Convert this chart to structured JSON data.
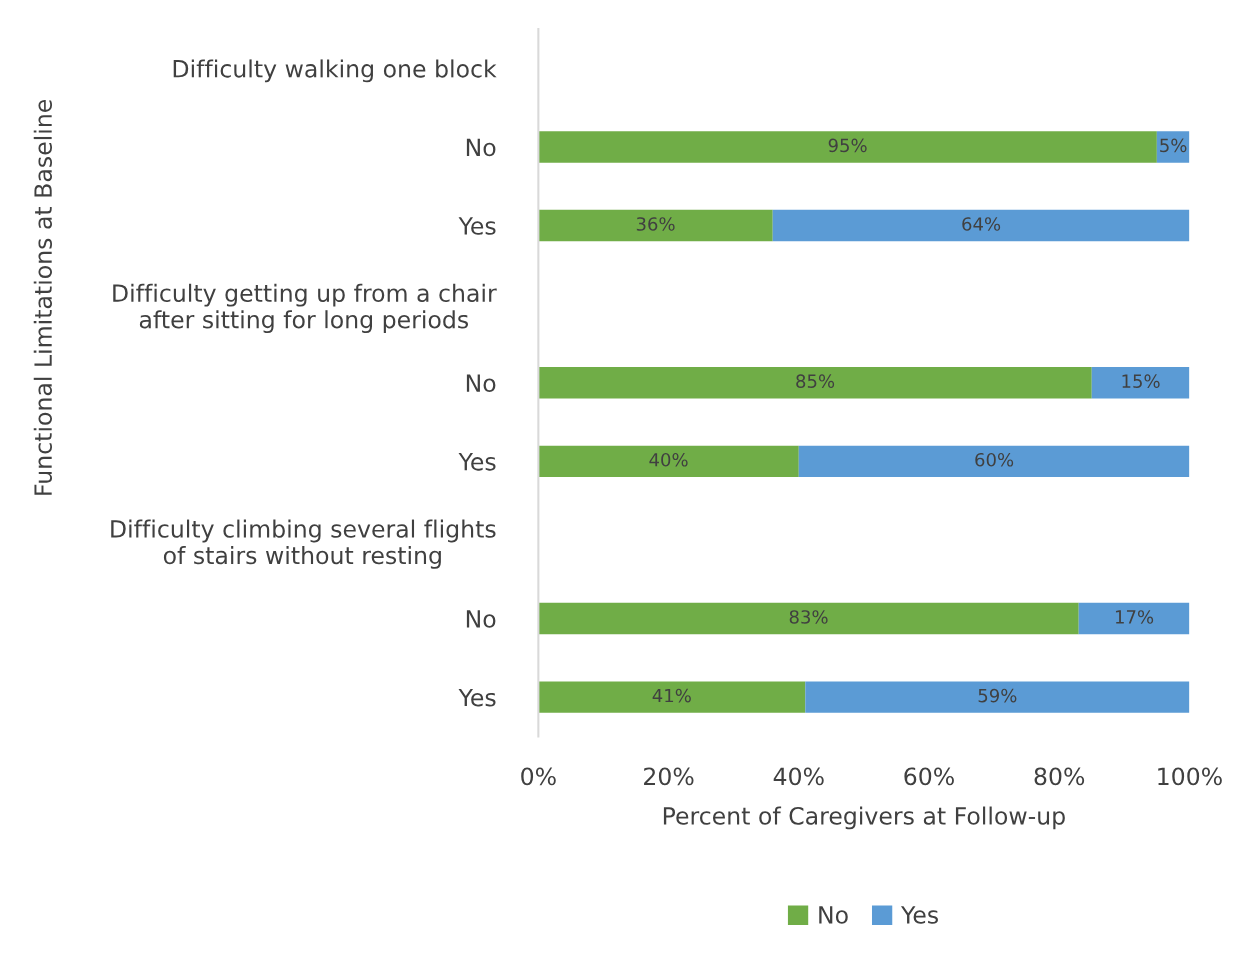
{
  "chart_data": {
    "type": "bar",
    "orientation": "horizontal",
    "stacked": true,
    "categories": [
      "Difficulty walking one block",
      "No",
      "Yes",
      "Difficulty getting up from a chair\nafter sitting for long periods",
      "No",
      "Yes",
      "Difficulty climbing several flights\nof stairs without resting",
      "No",
      "Yes"
    ],
    "series": [
      {
        "name": "No",
        "color": "#70ad47",
        "values": [
          null,
          95,
          36,
          null,
          85,
          40,
          null,
          83,
          41
        ],
        "value_labels": [
          null,
          "95%",
          "36%",
          null,
          "85%",
          "40%",
          null,
          "83%",
          "41%"
        ]
      },
      {
        "name": "Yes",
        "color": "#5b9bd5",
        "values": [
          null,
          5,
          64,
          null,
          15,
          60,
          null,
          17,
          59
        ],
        "value_labels": [
          null,
          "5%",
          "64%",
          null,
          "15%",
          "60%",
          null,
          "17%",
          "59%"
        ]
      }
    ],
    "xlim": [
      0,
      100
    ],
    "xticks": [
      {
        "value": 0,
        "label": "0%"
      },
      {
        "value": 20,
        "label": "20%"
      },
      {
        "value": 40,
        "label": "40%"
      },
      {
        "value": 60,
        "label": "60%"
      },
      {
        "value": 80,
        "label": "80%"
      },
      {
        "value": 100,
        "label": "100%"
      }
    ],
    "xlabel": "Percent of Caregivers at Follow-up",
    "ylabel": "Functional Limitations at Baseline",
    "legend": "bottom"
  }
}
